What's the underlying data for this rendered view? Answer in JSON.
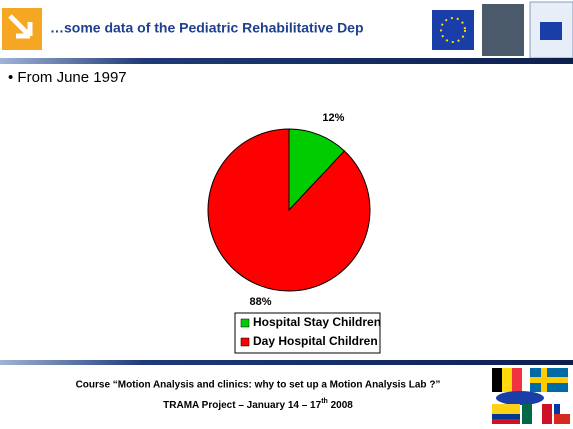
{
  "header": {
    "title": "…some data of the Pediatric Rehabilitative Dep"
  },
  "bullet": "• From June 1997",
  "chart_data": {
    "type": "pie",
    "categories": [
      "Hospital Stay Children",
      "Day Hospital Children"
    ],
    "values": [
      12,
      88
    ],
    "value_labels": [
      "12%",
      "88%"
    ],
    "colors": [
      "#00cc00",
      "#ff0000"
    ]
  },
  "footer": {
    "line1": "Course “Motion Analysis and clinics: why to set up a Motion Analysis Lab ?”",
    "line2": "TRAMA Project – January 14 – 17",
    "line2_sup": "th",
    "line2_end": " 2008"
  }
}
